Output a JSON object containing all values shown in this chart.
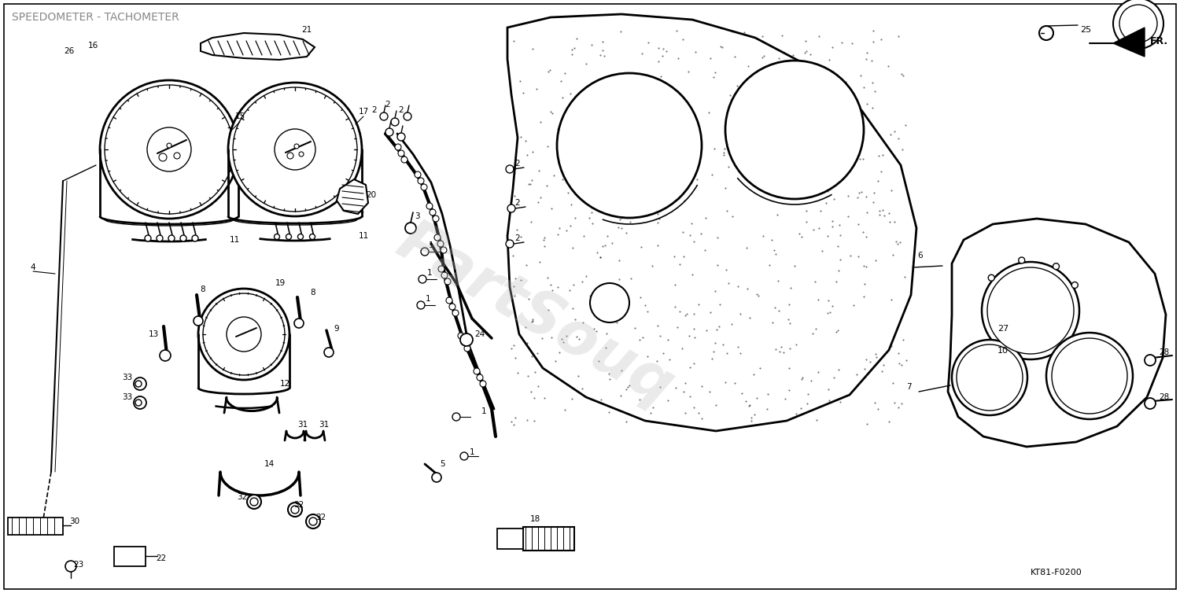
{
  "title": "SPEEDOMETER - TACHOMETER",
  "title_color": "#888888",
  "title_fontsize": 10,
  "bg_color": "#ffffff",
  "drawing_color": "#000000",
  "watermark_text": "PartSouq",
  "watermark_color": "#bbbbbb",
  "watermark_alpha": 0.3,
  "diagram_code": "KT81-F0200",
  "fr_label": "FR.",
  "fig_width": 15.0,
  "fig_height": 7.54,
  "dpi": 100
}
